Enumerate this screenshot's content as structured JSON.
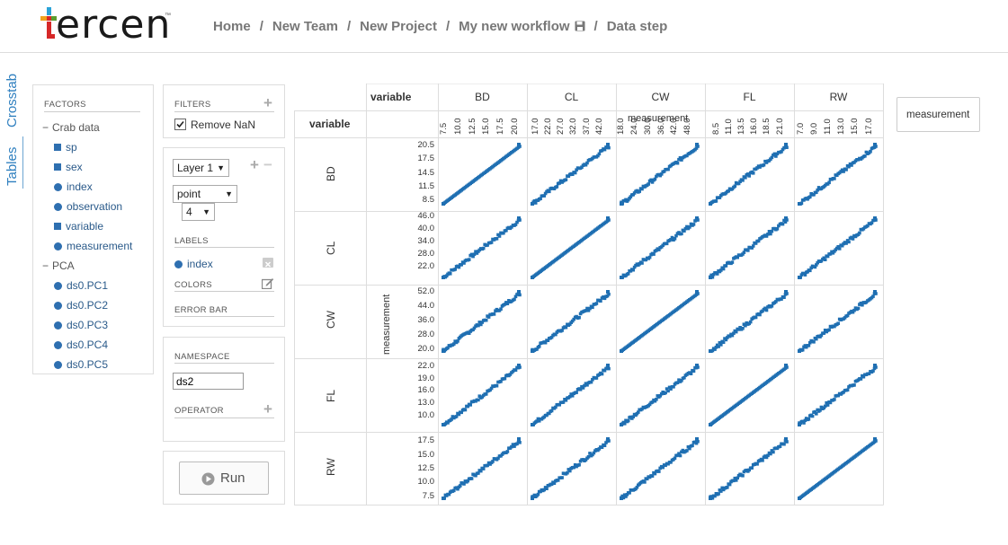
{
  "app": {
    "logo_text": "ercen",
    "logo_tm": "™"
  },
  "breadcrumb": [
    "Home",
    "New Team",
    "New Project",
    "My new workflow",
    "Data step"
  ],
  "tabs": {
    "crosstab": "Crosstab",
    "tables": "Tables"
  },
  "factors": {
    "title": "FACTORS",
    "groups": [
      {
        "label": "Crab data",
        "items": [
          {
            "label": "sp",
            "shape": "square"
          },
          {
            "label": "sex",
            "shape": "square"
          },
          {
            "label": "index",
            "shape": "circle"
          },
          {
            "label": "observation",
            "shape": "circle"
          },
          {
            "label": "variable",
            "shape": "square"
          },
          {
            "label": "measurement",
            "shape": "circle"
          }
        ]
      },
      {
        "label": "PCA",
        "items": [
          {
            "label": "ds0.PC1",
            "shape": "circle"
          },
          {
            "label": "ds0.PC2",
            "shape": "circle"
          },
          {
            "label": "ds0.PC3",
            "shape": "circle"
          },
          {
            "label": "ds0.PC4",
            "shape": "circle"
          },
          {
            "label": "ds0.PC5",
            "shape": "circle"
          }
        ]
      }
    ]
  },
  "filters": {
    "title": "FILTERS",
    "remove_nan": "Remove NaN",
    "remove_nan_checked": true
  },
  "layer": {
    "layer_select": "Layer 1",
    "chart_type": "point",
    "point_size": "4",
    "labels_title": "LABELS",
    "label_item": "index",
    "colors_title": "COLORS",
    "error_bar_title": "ERROR BAR"
  },
  "namespace": {
    "title": "NAMESPACE",
    "value": "ds2",
    "operator_title": "OPERATOR"
  },
  "run": {
    "label": "Run"
  },
  "crosstab": {
    "col_header_label": "variable",
    "row_header_label": "variable",
    "x_axis_label": "measurement",
    "y_axis_label": "measurement",
    "side_factor": "measurement"
  },
  "chart_data": {
    "type": "scatter",
    "columns": [
      "BD",
      "CL",
      "CW",
      "FL",
      "RW"
    ],
    "rows": [
      "BD",
      "CL",
      "CW",
      "FL",
      "RW"
    ],
    "x_ticks": {
      "BD": [
        "7.5",
        "10.0",
        "12.5",
        "15.0",
        "17.5",
        "20.0"
      ],
      "CL": [
        "17.0",
        "22.0",
        "27.0",
        "32.0",
        "37.0",
        "42.0"
      ],
      "CW": [
        "18.0",
        "24.0",
        "30.0",
        "36.0",
        "42.0",
        "48.0"
      ],
      "FL": [
        "8.5",
        "11.0",
        "13.5",
        "16.0",
        "18.5",
        "21.0"
      ],
      "RW": [
        "7.0",
        "9.0",
        "11.0",
        "13.0",
        "15.0",
        "17.0"
      ]
    },
    "y_ticks": {
      "BD": [
        "20.5",
        "17.5",
        "14.5",
        "11.5",
        "8.5"
      ],
      "CL": [
        "46.0",
        "40.0",
        "34.0",
        "28.0",
        "22.0"
      ],
      "CW": [
        "52.0",
        "44.0",
        "36.0",
        "28.0",
        "20.0"
      ],
      "FL": [
        "22.0",
        "19.0",
        "16.0",
        "13.0",
        "10.0"
      ],
      "RW": [
        "17.5",
        "15.0",
        "12.5",
        "10.0",
        "7.5"
      ]
    },
    "ranges": {
      "BD": [
        7.0,
        21.5
      ],
      "CL": [
        15.0,
        47.0
      ],
      "CW": [
        17.0,
        54.0
      ],
      "FL": [
        7.0,
        23.0
      ],
      "RW": [
        6.5,
        18.5
      ]
    },
    "marker": "square",
    "color": "#1f6fb2"
  }
}
